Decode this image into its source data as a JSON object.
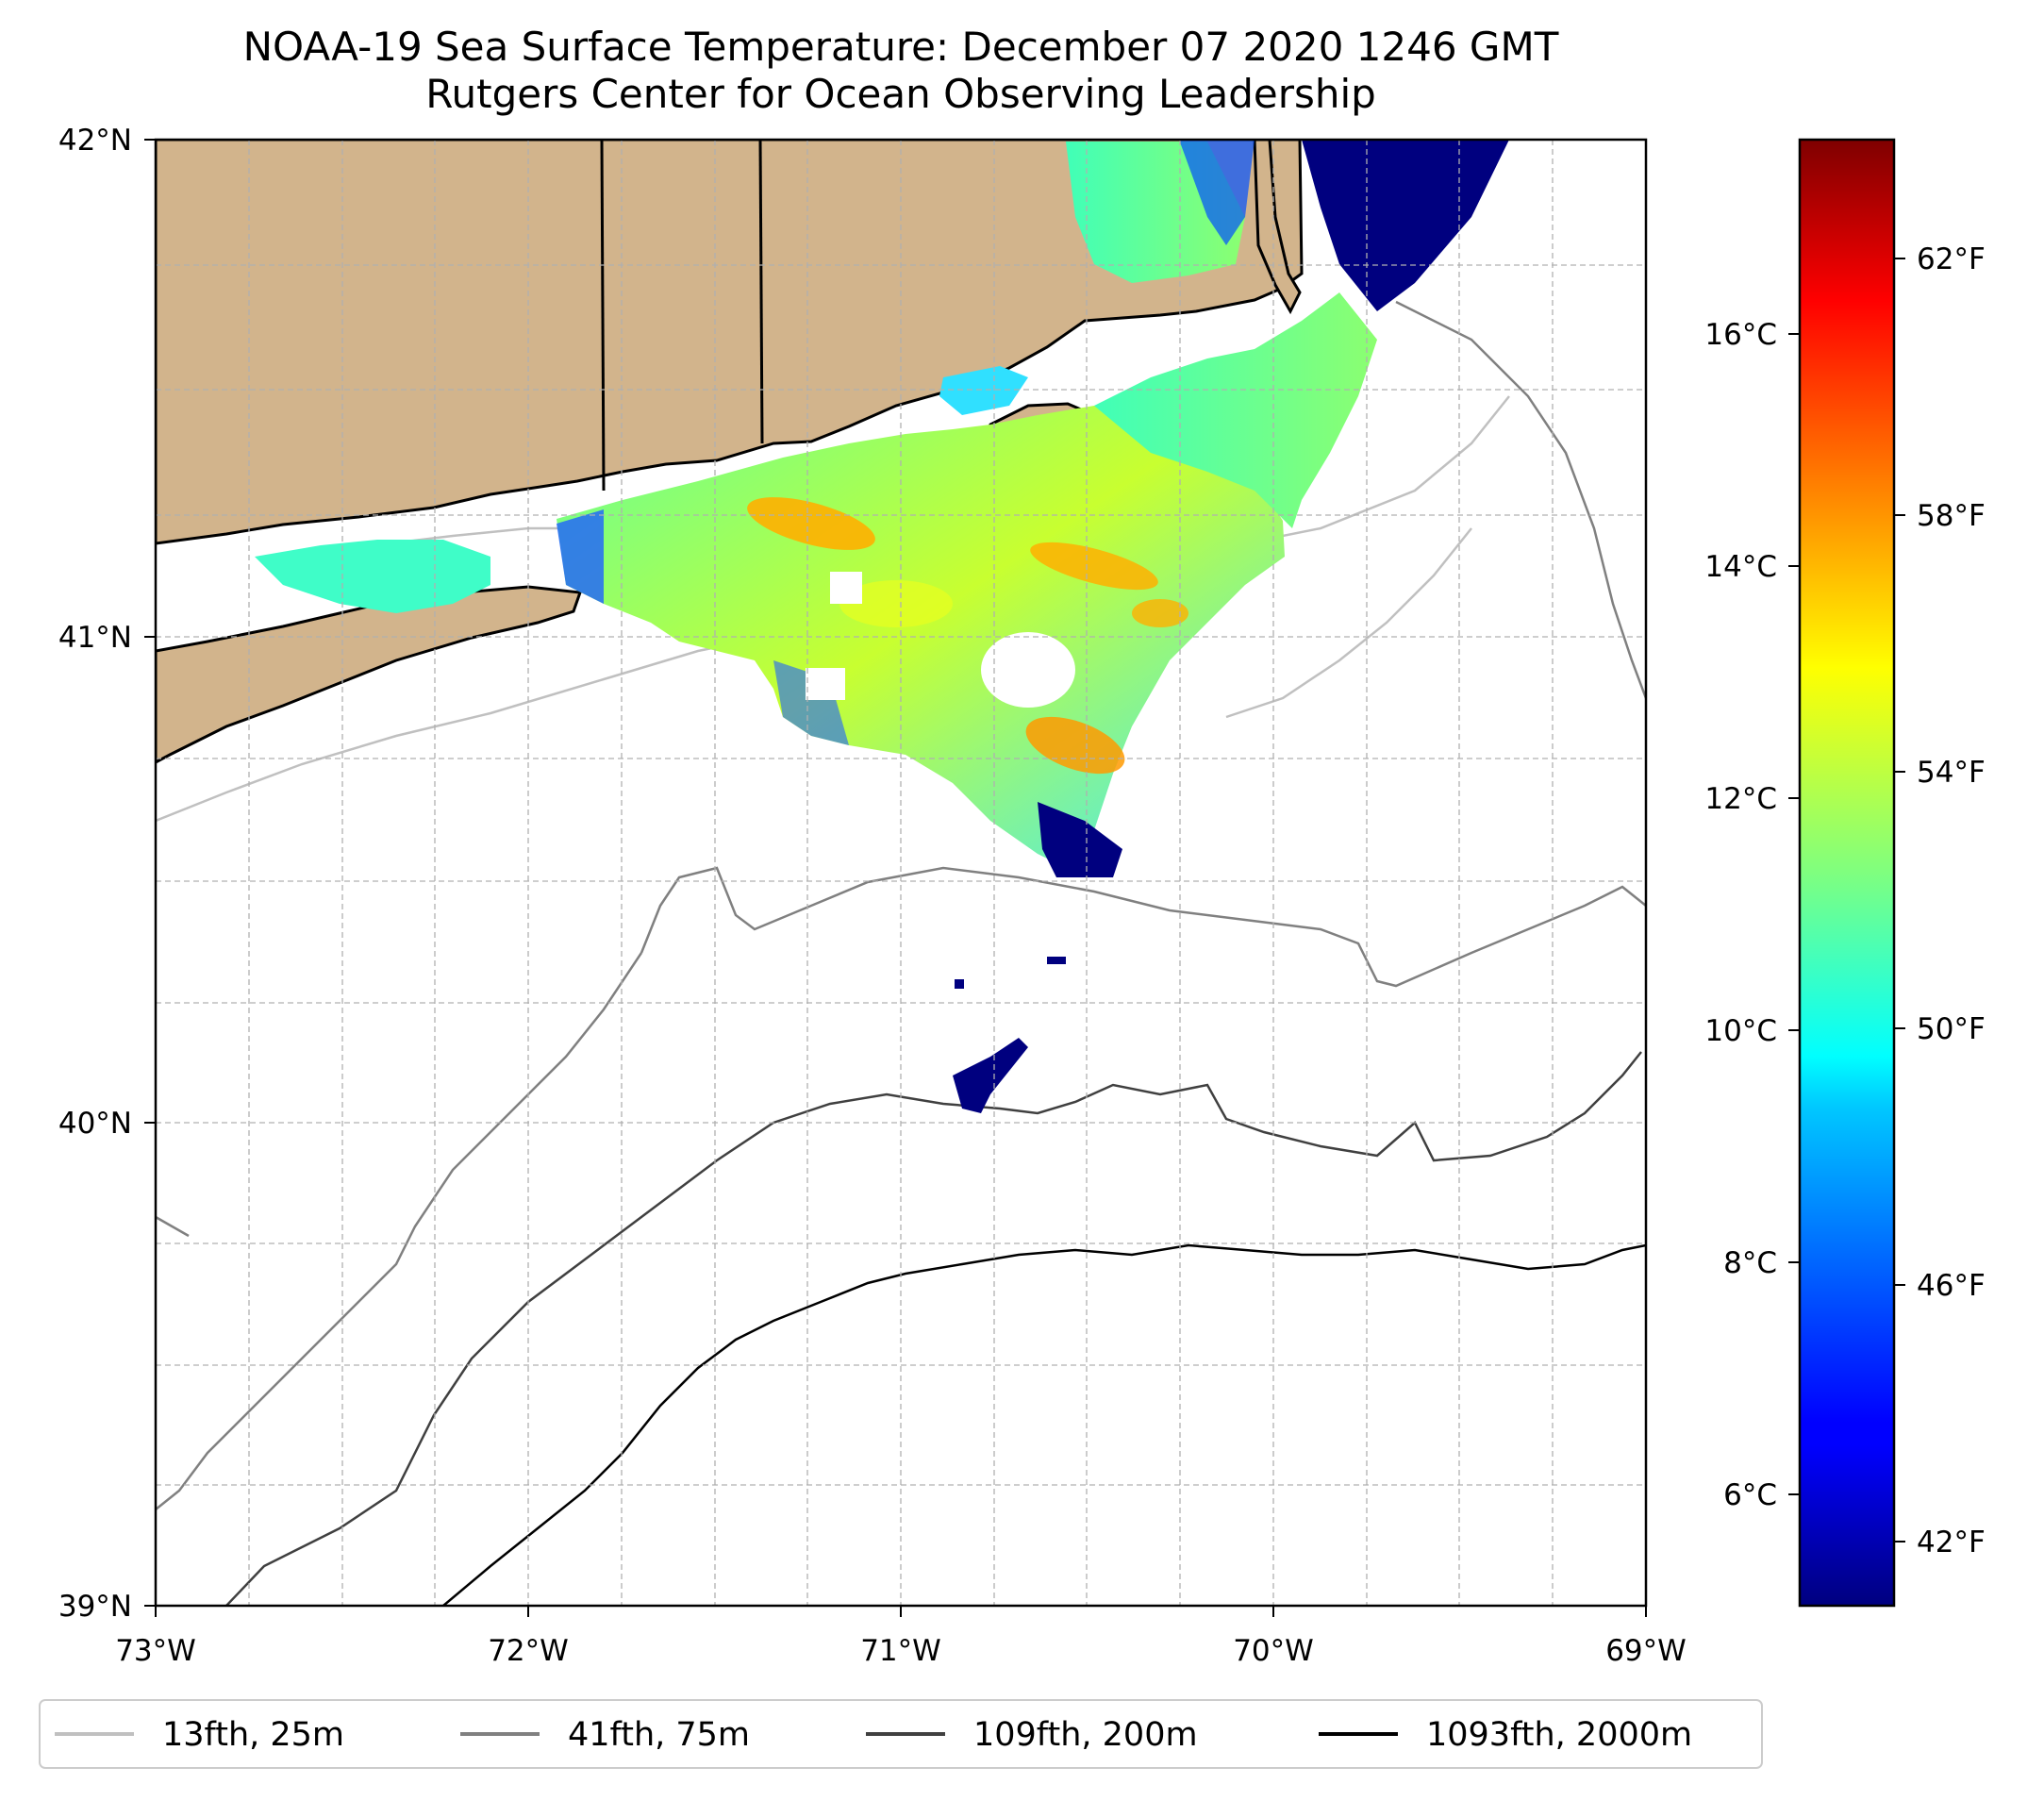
{
  "title": {
    "line1": "NOAA-19 Sea Surface Temperature: December 07 2020 1246 GMT",
    "line2": "Rutgers Center for Ocean Observing Leadership"
  },
  "map": {
    "lon_ticks": [
      "73°W",
      "72°W",
      "71°W",
      "70°W",
      "69°W"
    ],
    "lat_ticks": [
      "42°N",
      "41°N",
      "40°N",
      "39°N"
    ],
    "lon_range": [
      -73,
      -69
    ],
    "lat_range": [
      39,
      42
    ],
    "land_color": "#d2b48c",
    "grid": true
  },
  "colorbar": {
    "colormap": "jet",
    "celsius_ticks": [
      "16°C",
      "14°C",
      "12°C",
      "10°C",
      "8°C",
      "6°C"
    ],
    "fahrenheit_ticks": [
      "62°F",
      "58°F",
      "54°F",
      "50°F",
      "46°F",
      "42°F"
    ]
  },
  "legend": {
    "placement": "bottom",
    "items": [
      {
        "label": "13fth, 25m",
        "color": "#c0c0c0"
      },
      {
        "label": "41fth, 75m",
        "color": "#808080"
      },
      {
        "label": "109fth, 200m",
        "color": "#404040"
      },
      {
        "label": "1093fth, 2000m",
        "color": "#000000"
      }
    ]
  }
}
